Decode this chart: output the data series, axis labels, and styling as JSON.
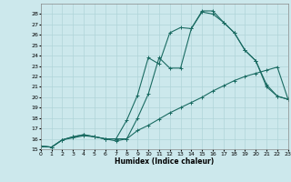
{
  "xlabel": "Humidex (Indice chaleur)",
  "bg_color": "#cce8ec",
  "line_color": "#1a6b62",
  "grid_color": "#b0d4d8",
  "ylim": [
    15,
    29
  ],
  "xlim": [
    0,
    23
  ],
  "yticks": [
    15,
    16,
    17,
    18,
    19,
    20,
    21,
    22,
    23,
    24,
    25,
    26,
    27,
    28
  ],
  "xticks": [
    0,
    1,
    2,
    3,
    4,
    5,
    6,
    7,
    8,
    9,
    10,
    11,
    12,
    13,
    14,
    15,
    16,
    17,
    18,
    19,
    20,
    21,
    22,
    23
  ],
  "series1_x": [
    0,
    1,
    2,
    3,
    4,
    5,
    6,
    7,
    8,
    9,
    10,
    11,
    12,
    13,
    14,
    15,
    16,
    17,
    18,
    19,
    20,
    21,
    22,
    23
  ],
  "series1_y": [
    15.3,
    15.2,
    15.9,
    16.1,
    16.3,
    16.2,
    16.0,
    15.8,
    16.0,
    16.8,
    17.3,
    17.9,
    18.5,
    19.0,
    19.5,
    20.0,
    20.6,
    21.1,
    21.6,
    22.0,
    22.3,
    22.6,
    22.9,
    19.8
  ],
  "series2_x": [
    0,
    1,
    2,
    3,
    4,
    5,
    6,
    7,
    8,
    9,
    10,
    11,
    12,
    13,
    14,
    15,
    16,
    17,
    18,
    19,
    20,
    21,
    22,
    23
  ],
  "series2_y": [
    15.3,
    15.2,
    15.9,
    16.2,
    16.4,
    16.2,
    16.0,
    16.0,
    17.8,
    20.2,
    23.8,
    23.2,
    26.2,
    26.7,
    26.6,
    28.2,
    28.0,
    27.2,
    26.2,
    24.5,
    23.5,
    21.0,
    20.1,
    19.8
  ],
  "series3_x": [
    0,
    1,
    2,
    3,
    4,
    5,
    6,
    7,
    8,
    9,
    10,
    11,
    12,
    13,
    14,
    15,
    16,
    17,
    18,
    19,
    20,
    21,
    22,
    23
  ],
  "series3_y": [
    15.3,
    15.2,
    15.9,
    16.2,
    16.4,
    16.2,
    16.0,
    16.0,
    16.0,
    18.0,
    20.3,
    23.8,
    22.8,
    22.8,
    26.6,
    28.3,
    28.3,
    27.2,
    26.2,
    24.5,
    23.5,
    21.2,
    20.1,
    19.8
  ]
}
